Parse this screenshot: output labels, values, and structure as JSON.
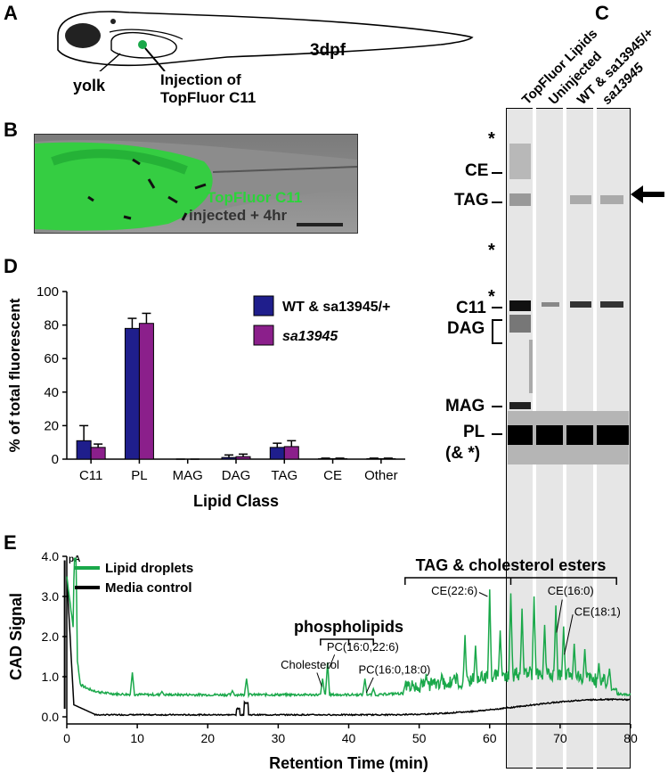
{
  "panels": {
    "a": {
      "label": "A",
      "yolk": "yolk",
      "injection_line1": "Injection of",
      "injection_line2": "TopFluor C11",
      "stage": "3dpf"
    },
    "b": {
      "label": "B",
      "fluor": "TopFluor C11",
      "time": "injected + 4hr"
    },
    "c": {
      "label": "C",
      "lanes": [
        "TopFluor Lipids",
        "Uninjected",
        "WT & sa13945/+",
        "sa13945"
      ],
      "bands": [
        "CE",
        "TAG",
        "C11",
        "DAG",
        "MAG",
        "PL",
        "(& *)"
      ],
      "star": "*"
    },
    "d": {
      "label": "D"
    },
    "e": {
      "label": "E",
      "pa": "pA"
    }
  },
  "chart_data": [
    {
      "type": "bar",
      "ylabel": "% of total fluorescent",
      "xlabel": "Lipid Class",
      "ylim": [
        0,
        100
      ],
      "yticks": [
        0,
        20,
        40,
        60,
        80,
        100
      ],
      "categories": [
        "C11",
        "PL",
        "MAG",
        "DAG",
        "TAG",
        "CE",
        "Other"
      ],
      "series": [
        {
          "name": "WT & sa13945/+",
          "color": "#1f1e8c",
          "values": [
            11,
            78,
            0,
            1,
            7,
            0.3,
            0.3
          ],
          "errors": [
            9,
            6,
            0,
            1.5,
            2.5,
            0.3,
            0.3
          ]
        },
        {
          "name": "sa13945",
          "color": "#8b1f8b",
          "values": [
            7,
            81,
            0,
            1.5,
            7.5,
            0.3,
            0.3
          ],
          "errors": [
            2,
            6,
            0,
            1.5,
            3.5,
            0.3,
            0.3
          ]
        }
      ],
      "legend": "top-right"
    },
    {
      "type": "line",
      "ylabel": "CAD Signal",
      "xlabel": "Retention Time (min)",
      "xlim": [
        0,
        80
      ],
      "ylim": [
        0,
        4
      ],
      "xticks": [
        0,
        10,
        20,
        30,
        40,
        50,
        60,
        70,
        80
      ],
      "yticks": [
        "0.0",
        "1.0",
        "2.0",
        "3.0",
        "4.0"
      ],
      "series": [
        {
          "name": "Lipid droplets",
          "color": "#1aa84a"
        },
        {
          "name": "Media control",
          "color": "#000000"
        }
      ],
      "annotations": [
        "TAG & cholesterol esters",
        "phospholipids",
        "Cholesterol",
        "PC(16:0,22:6)",
        "PC(16:0,18:0)",
        "CE(22:6)",
        "CE(16:0)",
        "CE(18:1)"
      ]
    }
  ]
}
